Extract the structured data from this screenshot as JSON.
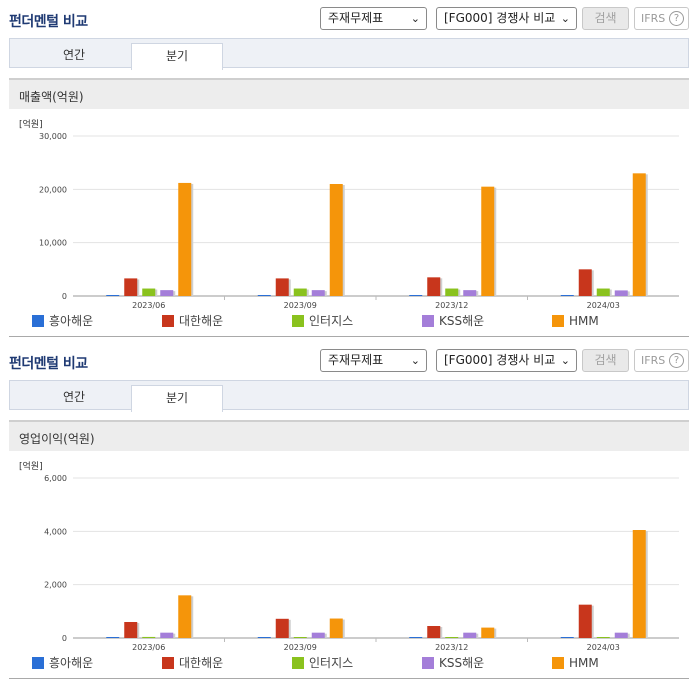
{
  "panels": [
    {
      "title": "펀더멘털 비교",
      "select_statement": "주재무제표",
      "select_compare": "[FG000] 경쟁사 비교",
      "search_label": "검색",
      "ifrs_label": "IFRS",
      "help_symbol": "?",
      "tabs": [
        "연간",
        "분기"
      ],
      "active_tab": 1,
      "chart_title": "매출액(억원)",
      "unit_label": "[억원]",
      "legend": [
        {
          "label": "흥아해운",
          "color": "#2a6fd6"
        },
        {
          "label": "대한해운",
          "color": "#c8361c"
        },
        {
          "label": "인터지스",
          "color": "#8ac21e"
        },
        {
          "label": "KSS해운",
          "color": "#a47ed9"
        },
        {
          "label": "HMM",
          "color": "#f5950a"
        }
      ]
    },
    {
      "title": "펀더멘털 비교",
      "select_statement": "주재무제표",
      "select_compare": "[FG000] 경쟁사 비교",
      "search_label": "검색",
      "ifrs_label": "IFRS",
      "help_symbol": "?",
      "tabs": [
        "연간",
        "분기"
      ],
      "active_tab": 1,
      "chart_title": "영업이익(억원)",
      "unit_label": "[억원]",
      "legend": [
        {
          "label": "흥아해운",
          "color": "#2a6fd6"
        },
        {
          "label": "대한해운",
          "color": "#c8361c"
        },
        {
          "label": "인터지스",
          "color": "#8ac21e"
        },
        {
          "label": "KSS해운",
          "color": "#a47ed9"
        },
        {
          "label": "HMM",
          "color": "#f5950a"
        }
      ]
    }
  ],
  "chart_data": [
    {
      "type": "bar",
      "title": "매출액(억원)",
      "ylabel": "[억원]",
      "ylim": [
        0,
        30000
      ],
      "yticks": [
        "0",
        "10,000",
        "20,000",
        "30,000"
      ],
      "ytick_values": [
        0,
        10000,
        20000,
        30000
      ],
      "grid": true,
      "legend_position": "bottom",
      "categories": [
        "2023/06",
        "2023/09",
        "2023/12",
        "2024/03"
      ],
      "series": [
        {
          "name": "흥아해운",
          "color": "#2a6fd6",
          "values": [
            150,
            150,
            150,
            150
          ]
        },
        {
          "name": "대한해운",
          "color": "#c8361c",
          "values": [
            3300,
            3300,
            3500,
            5000
          ]
        },
        {
          "name": "인터지스",
          "color": "#8ac21e",
          "values": [
            1400,
            1400,
            1400,
            1400
          ]
        },
        {
          "name": "KSS해운",
          "color": "#a47ed9",
          "values": [
            1100,
            1100,
            1100,
            1050
          ]
        },
        {
          "name": "HMM",
          "color": "#f5950a",
          "values": [
            21200,
            21000,
            20500,
            23000
          ]
        }
      ]
    },
    {
      "type": "bar",
      "title": "영업이익(억원)",
      "ylabel": "[억원]",
      "ylim": [
        0,
        6000
      ],
      "yticks": [
        "0",
        "2,000",
        "4,000",
        "6,000"
      ],
      "ytick_values": [
        0,
        2000,
        4000,
        6000
      ],
      "grid": true,
      "legend_position": "bottom",
      "categories": [
        "2023/06",
        "2023/09",
        "2023/12",
        "2024/03"
      ],
      "series": [
        {
          "name": "흥아해운",
          "color": "#2a6fd6",
          "values": [
            30,
            30,
            20,
            30
          ]
        },
        {
          "name": "대한해운",
          "color": "#c8361c",
          "values": [
            600,
            720,
            450,
            1250
          ]
        },
        {
          "name": "인터지스",
          "color": "#8ac21e",
          "values": [
            40,
            10,
            10,
            10
          ]
        },
        {
          "name": "KSS해운",
          "color": "#a47ed9",
          "values": [
            200,
            200,
            200,
            200
          ]
        },
        {
          "name": "HMM",
          "color": "#f5950a",
          "values": [
            1600,
            730,
            390,
            4050
          ]
        }
      ]
    }
  ]
}
